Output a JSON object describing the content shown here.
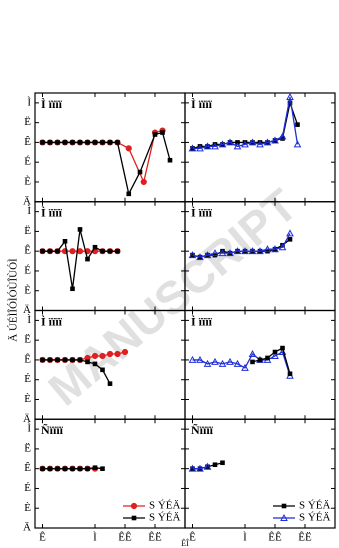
{
  "y_label": "Ä ÚÉÌÎÓÌÓÙÎÙÓÌ",
  "x_label": "ÊÎ",
  "watermark": "MANUSCRIPT",
  "chart_data": [
    {
      "type": "line",
      "title": "Ì ïïïï",
      "xlim": [
        0,
        20
      ],
      "xticks": [
        1,
        8,
        12,
        16
      ],
      "ylim": [
        0,
        5.5
      ],
      "yticks": [
        {
          "value": 0,
          "label": "Ä"
        },
        {
          "value": 1,
          "label": "È"
        },
        {
          "value": 2,
          "label": "É"
        },
        {
          "value": 3,
          "label": "Ê"
        },
        {
          "value": 4,
          "label": "Ë"
        },
        {
          "value": 5,
          "label": "Ì"
        }
      ],
      "series": [
        {
          "color": "#e02020",
          "marker": "circle",
          "x": [
            1,
            2,
            3,
            4,
            5,
            6,
            7,
            8,
            9,
            10,
            11,
            12.5,
            14.5,
            16,
            17
          ],
          "values": [
            3,
            3,
            3,
            3,
            3,
            3,
            3,
            3,
            3,
            3,
            3,
            2.7,
            1.0,
            3.5,
            3.6
          ]
        },
        {
          "color": "#000000",
          "marker": "square",
          "x": [
            1,
            2,
            3,
            4,
            5,
            6,
            7,
            8,
            9,
            10,
            11,
            12.5,
            14,
            16,
            17,
            18
          ],
          "values": [
            3,
            3,
            3,
            3,
            3,
            3,
            3,
            3,
            3,
            3,
            3,
            0.4,
            1.5,
            3.4,
            3.5,
            2.1
          ]
        }
      ]
    },
    {
      "type": "line",
      "title": "Ì ïïïï",
      "xlim": [
        0,
        20
      ],
      "xticks": [
        1,
        8,
        12,
        16
      ],
      "ylim": [
        0,
        5.5
      ],
      "yticks": [
        0,
        1,
        2,
        3,
        4,
        5
      ],
      "series": [
        {
          "color": "#000000",
          "marker": "square",
          "x": [
            1,
            2,
            3,
            4,
            5,
            6,
            7,
            8,
            9,
            10,
            11,
            12,
            13,
            14,
            15
          ],
          "values": [
            2.7,
            2.8,
            2.8,
            2.9,
            2.9,
            3,
            3,
            3,
            3,
            3,
            3,
            3.1,
            3.2,
            5.0,
            3.9
          ]
        },
        {
          "color": "#1f2fd8",
          "marker": "triangle",
          "x": [
            1,
            2,
            3,
            4,
            5,
            6,
            7,
            8,
            9,
            10,
            11,
            12,
            13,
            14,
            15
          ],
          "values": [
            2.7,
            2.7,
            2.8,
            2.8,
            2.9,
            3.0,
            2.8,
            2.9,
            3.0,
            2.9,
            3.0,
            3.1,
            3.3,
            5.3,
            2.9
          ]
        }
      ]
    },
    {
      "type": "line",
      "title": "Ì ïïïï",
      "xlim": [
        0,
        20
      ],
      "xticks": [
        1,
        8,
        12,
        16
      ],
      "ylim": [
        0,
        5.5
      ],
      "yticks": [
        {
          "value": 0,
          "label": "Ä"
        },
        {
          "value": 1,
          "label": "È"
        },
        {
          "value": 2,
          "label": "É"
        },
        {
          "value": 3,
          "label": "Ê"
        },
        {
          "value": 4,
          "label": "Ë"
        },
        {
          "value": 5,
          "label": "Ì"
        }
      ],
      "series": [
        {
          "color": "#e02020",
          "marker": "circle",
          "x": [
            1,
            2,
            3,
            4,
            5,
            6,
            7,
            8,
            9,
            10,
            11
          ],
          "values": [
            3,
            3,
            3,
            3,
            3,
            3,
            3,
            3,
            3,
            3,
            3
          ]
        },
        {
          "color": "#000000",
          "marker": "square",
          "x": [
            1,
            2,
            3,
            4,
            5,
            6,
            7,
            8,
            9,
            10,
            11
          ],
          "values": [
            3,
            3,
            3,
            3.5,
            1.1,
            4.1,
            2.6,
            3.2,
            3,
            3,
            3
          ]
        }
      ]
    },
    {
      "type": "line",
      "title": "Ì ïïïï",
      "xlim": [
        0,
        20
      ],
      "xticks": [
        1,
        8,
        12,
        16
      ],
      "ylim": [
        0,
        5.5
      ],
      "yticks": [
        0,
        1,
        2,
        3,
        4,
        5
      ],
      "series": [
        {
          "color": "#000000",
          "marker": "square",
          "x": [
            1,
            2,
            3,
            4,
            5,
            6,
            7,
            8,
            9,
            10,
            11,
            12,
            13,
            14
          ],
          "values": [
            2.8,
            2.7,
            2.8,
            2.8,
            3,
            2.9,
            3,
            3,
            3,
            3,
            3,
            3.1,
            3.3,
            3.6
          ]
        },
        {
          "color": "#1f2fd8",
          "marker": "triangle",
          "x": [
            1,
            2,
            3,
            4,
            5,
            6,
            7,
            8,
            9,
            10,
            11,
            12,
            13,
            14
          ],
          "values": [
            2.8,
            2.7,
            2.8,
            2.9,
            2.9,
            2.9,
            3,
            3,
            3,
            3,
            3.1,
            3.1,
            3.2,
            3.9
          ]
        }
      ]
    },
    {
      "type": "line",
      "title": "Ì ïïïï",
      "xlim": [
        0,
        20
      ],
      "xticks": [
        1,
        8,
        12,
        16
      ],
      "ylim": [
        0,
        5.5
      ],
      "yticks": [
        {
          "value": 0,
          "label": "Ä"
        },
        {
          "value": 1,
          "label": "È"
        },
        {
          "value": 2,
          "label": "É"
        },
        {
          "value": 3,
          "label": "Ê"
        },
        {
          "value": 4,
          "label": "Ë"
        },
        {
          "value": 5,
          "label": "Ì"
        }
      ],
      "series": [
        {
          "color": "#e02020",
          "marker": "circle",
          "x": [
            1,
            2,
            3,
            4,
            5,
            6,
            7,
            8,
            9,
            10,
            11,
            12
          ],
          "values": [
            3,
            3,
            3,
            3,
            3,
            3,
            3.1,
            3.2,
            3.2,
            3.3,
            3.3,
            3.4
          ]
        },
        {
          "color": "#000000",
          "marker": "square",
          "x": [
            1,
            2,
            3,
            4,
            5,
            6,
            7,
            8,
            9,
            10
          ],
          "values": [
            3,
            3,
            3,
            3,
            3,
            3,
            2.9,
            2.8,
            2.5,
            1.8
          ]
        }
      ]
    },
    {
      "type": "line",
      "title": "Ì ïïïï",
      "xlim": [
        0,
        20
      ],
      "xticks": [
        1,
        8,
        12,
        16
      ],
      "ylim": [
        0,
        5.5
      ],
      "yticks": [
        0,
        1,
        2,
        3,
        4,
        5
      ],
      "series": [
        {
          "color": "#1f2fd8",
          "marker": "triangle",
          "x": [
            1,
            2,
            3,
            4,
            5,
            6,
            7,
            8,
            9,
            10,
            11,
            12,
            13,
            14
          ],
          "values": [
            3,
            3,
            2.8,
            2.9,
            2.8,
            2.9,
            2.8,
            2.6,
            3.3,
            3,
            3,
            3.2,
            3.4,
            2.2
          ]
        },
        {
          "color": "#000000",
          "marker": "square",
          "x": [
            9,
            10,
            11,
            12,
            13,
            14
          ],
          "values": [
            2.9,
            3,
            3.1,
            3.4,
            3.6,
            2.3
          ]
        }
      ]
    },
    {
      "type": "line",
      "title": "Ñïïïï",
      "xlim": [
        0,
        20
      ],
      "xticks": [
        {
          "value": 1,
          "label": "Ê"
        },
        {
          "value": 8,
          "label": "Ì"
        },
        {
          "value": 12,
          "label": "ÊÊ"
        },
        {
          "value": 16,
          "label": "ÊË"
        }
      ],
      "ylim": [
        0,
        5.5
      ],
      "yticks": [
        {
          "value": 0,
          "label": "Ä"
        },
        {
          "value": 1,
          "label": "È"
        },
        {
          "value": 2,
          "label": "É"
        },
        {
          "value": 3,
          "label": "Ê"
        },
        {
          "value": 4,
          "label": "Ë"
        },
        {
          "value": 5,
          "label": "Ì"
        }
      ],
      "legend": "lower right",
      "series": [
        {
          "name": "S ÝÉÄ",
          "color": "#e02020",
          "marker": "circle",
          "x": [
            1,
            2,
            3,
            4,
            5,
            6,
            7,
            8
          ],
          "values": [
            3,
            3,
            3,
            3,
            3,
            3,
            3,
            3
          ]
        },
        {
          "name": "S ÝÉÄ",
          "color": "#000000",
          "marker": "square",
          "x": [
            1,
            2,
            3,
            4,
            5,
            6,
            7,
            8,
            9
          ],
          "values": [
            3,
            3,
            3,
            3,
            3,
            3,
            3,
            3.05,
            3
          ]
        }
      ]
    },
    {
      "type": "line",
      "title": "Ñïïïï",
      "xlim": [
        0,
        20
      ],
      "xticks": [
        {
          "value": 1,
          "label": "Ê"
        },
        {
          "value": 8,
          "label": "Ì"
        },
        {
          "value": 12,
          "label": "ÊÊ"
        },
        {
          "value": 16,
          "label": "ÊË"
        }
      ],
      "ylim": [
        0,
        5.5
      ],
      "yticks": [
        0,
        1,
        2,
        3,
        4,
        5
      ],
      "legend": "lower right",
      "series": [
        {
          "name": "S ÝÉÄ",
          "color": "#000000",
          "marker": "square",
          "x": [
            1,
            2,
            3,
            4,
            5
          ],
          "values": [
            3,
            3,
            3.1,
            3.2,
            3.3
          ]
        },
        {
          "name": "S ÝÉÄ",
          "color": "#1f2fd8",
          "marker": "triangle",
          "x": [
            1,
            2,
            3
          ],
          "values": [
            3,
            3,
            3.1
          ]
        }
      ]
    }
  ]
}
